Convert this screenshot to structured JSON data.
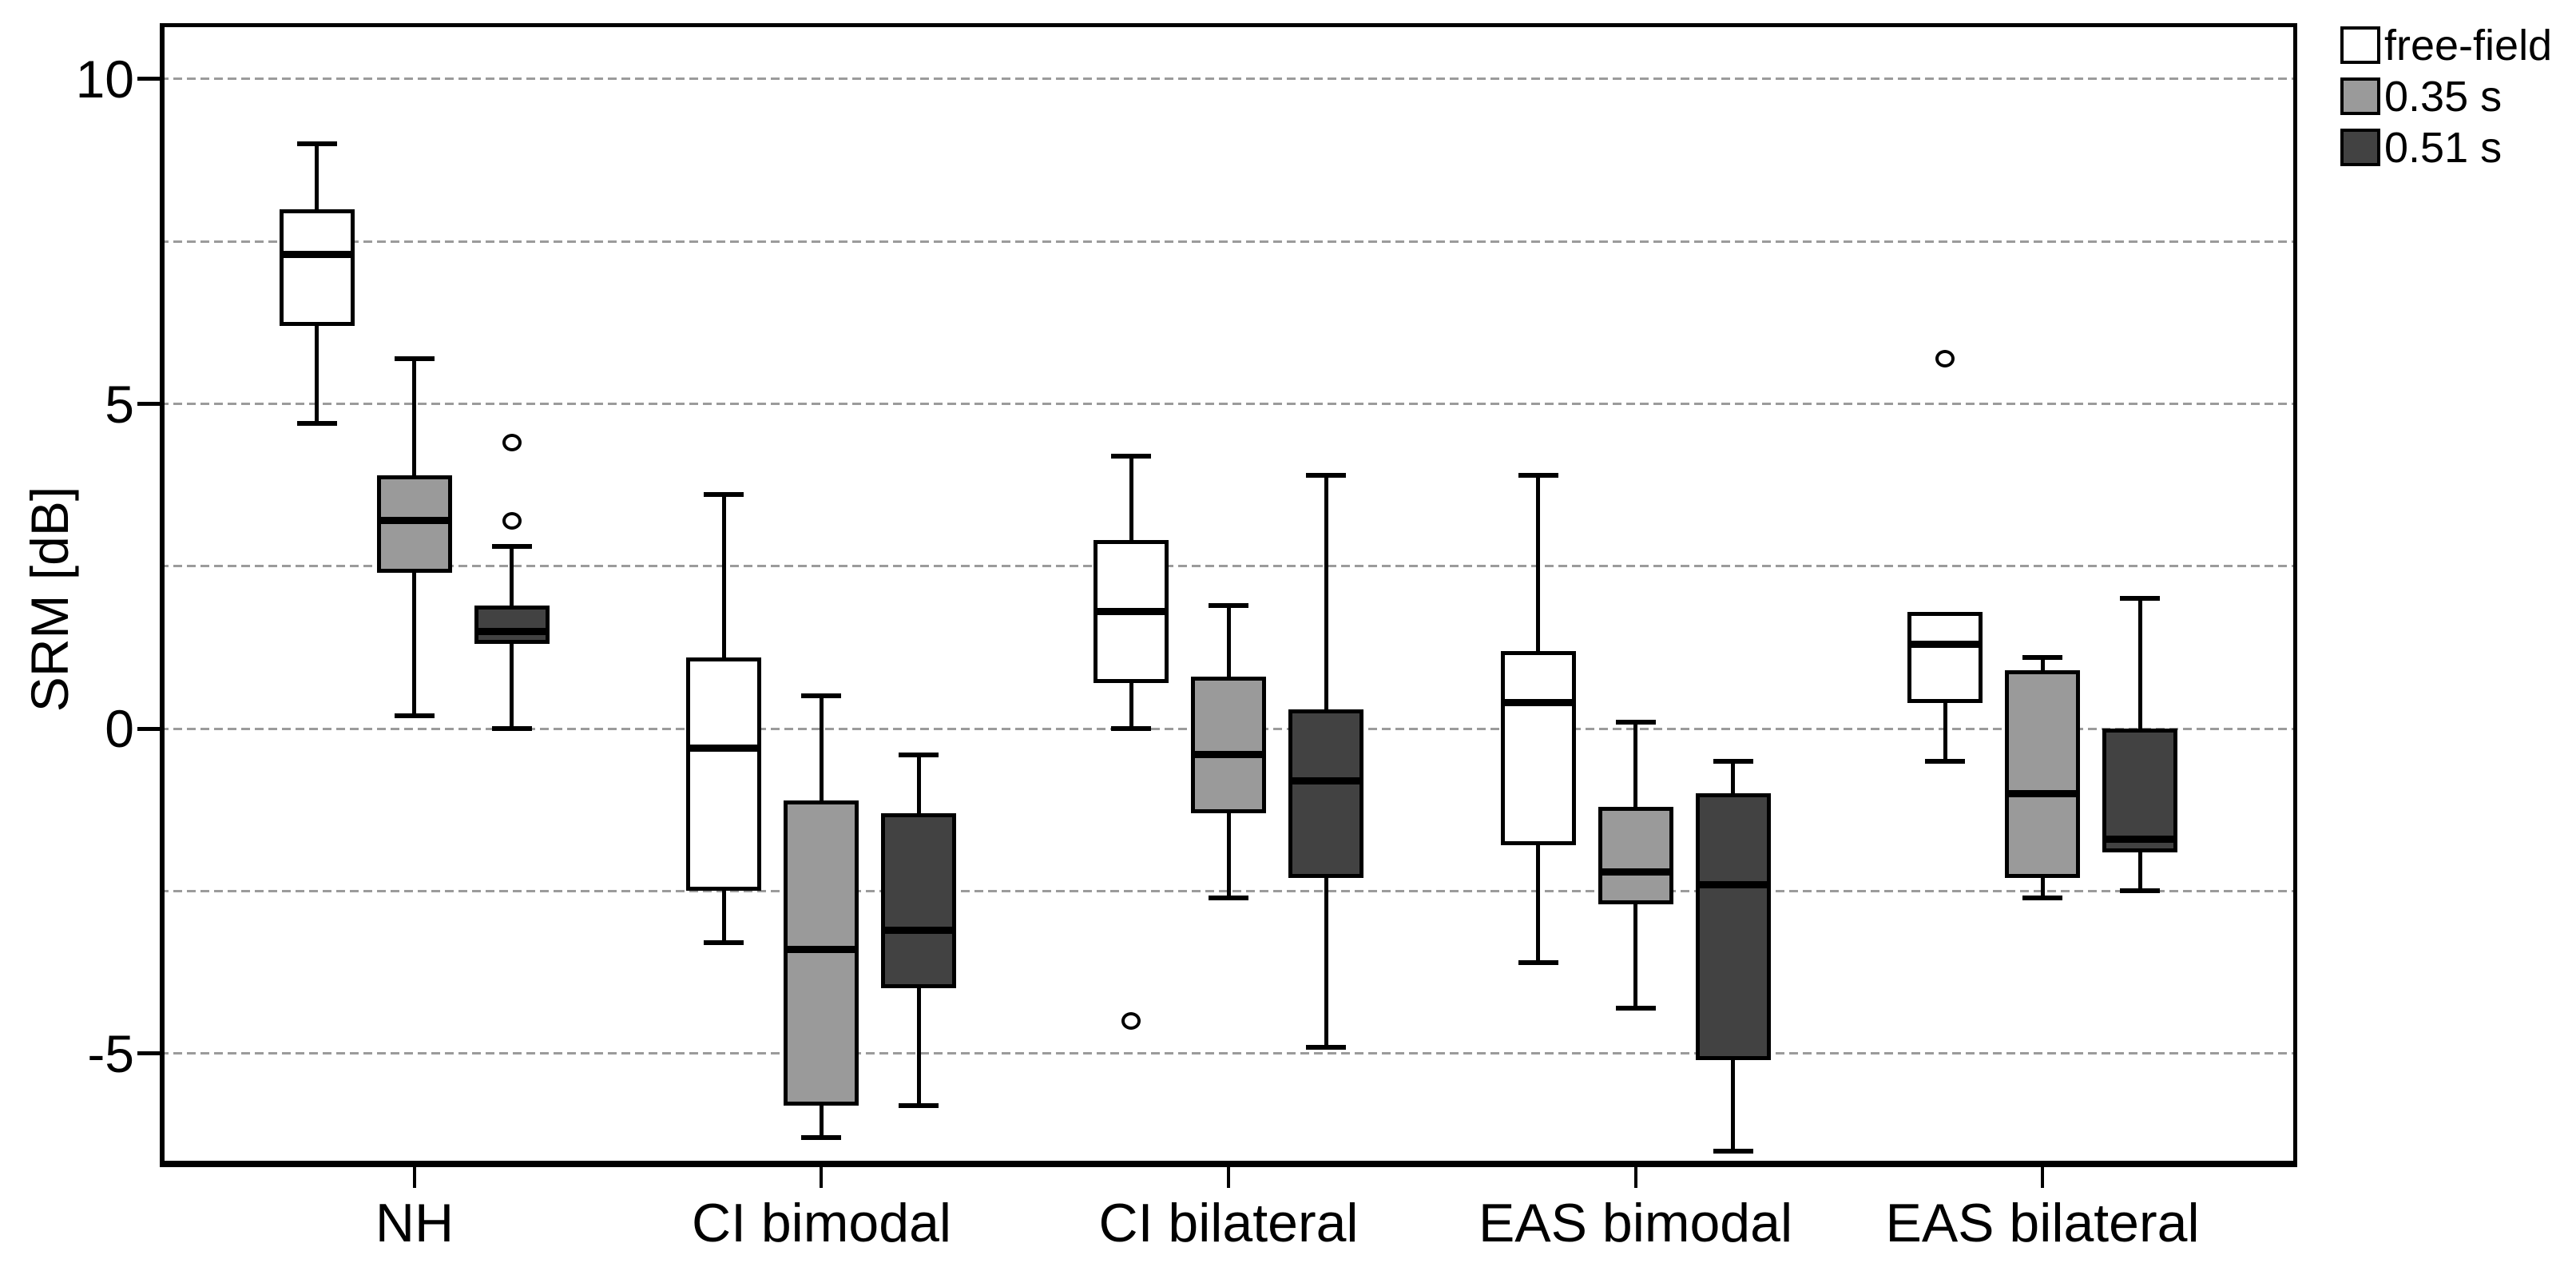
{
  "chart_data": {
    "type": "boxplot",
    "title": "",
    "xlabel": "",
    "ylabel": "SRM [dB]",
    "ylim": [
      -6.75,
      10.86
    ],
    "y_tick_values": [
      10,
      5,
      0,
      -5
    ],
    "y_tick_labels": [
      "10",
      "5",
      "0",
      "-5"
    ],
    "gridline_values": [
      10,
      7.5,
      5,
      2.5,
      0,
      -2.5,
      -5
    ],
    "grid_style": "dashed horizontal gridlines every 2.5 dB",
    "categories": [
      "NH",
      "CI bimodal",
      "CI bilateral",
      "EAS bimodal",
      "EAS bilateral"
    ],
    "legend_position": "top-right-outside",
    "colors": {
      "free_field_fill": "#ffffff",
      "s035_fill": "#9a9a9a",
      "s051_fill": "#424242",
      "line": "#000000",
      "grid": "#9b9b9b",
      "background": "#ffffff"
    },
    "series": [
      {
        "name": "free-field",
        "fill": "#ffffff",
        "boxes": [
          {
            "category": "NH",
            "whisker_low": 4.7,
            "q1": 6.2,
            "median": 7.3,
            "q3": 8.0,
            "whisker_high": 9.0,
            "outliers": []
          },
          {
            "category": "CI bimodal",
            "whisker_low": -3.3,
            "q1": -2.5,
            "median": -0.3,
            "q3": 1.1,
            "whisker_high": 3.6,
            "outliers": []
          },
          {
            "category": "CI bilateral",
            "whisker_low": 0.0,
            "q1": 0.7,
            "median": 1.8,
            "q3": 2.9,
            "whisker_high": 4.2,
            "outliers": [
              -4.5
            ]
          },
          {
            "category": "EAS bimodal",
            "whisker_low": -3.6,
            "q1": -1.8,
            "median": 0.4,
            "q3": 1.2,
            "whisker_high": 3.9,
            "outliers": []
          },
          {
            "category": "EAS bilateral",
            "whisker_low": -0.5,
            "q1": 0.4,
            "median": 1.3,
            "q3": 1.8,
            "whisker_high": null,
            "outliers": [
              5.7
            ]
          }
        ]
      },
      {
        "name": "0.35 s",
        "fill": "#9a9a9a",
        "boxes": [
          {
            "category": "NH",
            "whisker_low": 0.2,
            "q1": 2.4,
            "median": 3.2,
            "q3": 3.9,
            "whisker_high": 5.7,
            "outliers": []
          },
          {
            "category": "CI bimodal",
            "whisker_low": -6.3,
            "q1": -5.8,
            "median": -3.4,
            "q3": -1.1,
            "whisker_high": 0.5,
            "outliers": []
          },
          {
            "category": "CI bilateral",
            "whisker_low": -2.6,
            "q1": -1.3,
            "median": -0.4,
            "q3": 0.8,
            "whisker_high": 1.9,
            "outliers": []
          },
          {
            "category": "EAS bimodal",
            "whisker_low": -4.3,
            "q1": -2.7,
            "median": -2.2,
            "q3": -1.2,
            "whisker_high": 0.1,
            "outliers": []
          },
          {
            "category": "EAS bilateral",
            "whisker_low": -2.6,
            "q1": -2.3,
            "median": -1.0,
            "q3": 0.9,
            "whisker_high": 1.1,
            "outliers": []
          }
        ]
      },
      {
        "name": "0.51 s",
        "fill": "#424242",
        "boxes": [
          {
            "category": "NH",
            "whisker_low": 0.0,
            "q1": 1.3,
            "median": 1.5,
            "q3": 1.9,
            "whisker_high": 2.8,
            "outliers": [
              3.2,
              4.4
            ]
          },
          {
            "category": "CI bimodal",
            "whisker_low": -5.8,
            "q1": -4.0,
            "median": -3.1,
            "q3": -1.3,
            "whisker_high": -0.4,
            "outliers": []
          },
          {
            "category": "CI bilateral",
            "whisker_low": -4.9,
            "q1": -2.3,
            "median": -0.8,
            "q3": 0.3,
            "whisker_high": 3.9,
            "outliers": []
          },
          {
            "category": "EAS bimodal",
            "whisker_low": -6.5,
            "q1": -5.1,
            "median": -2.4,
            "q3": -1.0,
            "whisker_high": -0.5,
            "outliers": []
          },
          {
            "category": "EAS bilateral",
            "whisker_low": -2.5,
            "q1": -1.9,
            "median": -1.7,
            "q3": 0.0,
            "whisker_high": 2.0,
            "outliers": []
          }
        ]
      }
    ],
    "legend": [
      {
        "label": "free-field",
        "fill": "#ffffff"
      },
      {
        "label": "0.35 s",
        "fill": "#9a9a9a"
      },
      {
        "label": "0.51 s",
        "fill": "#424242"
      }
    ]
  }
}
